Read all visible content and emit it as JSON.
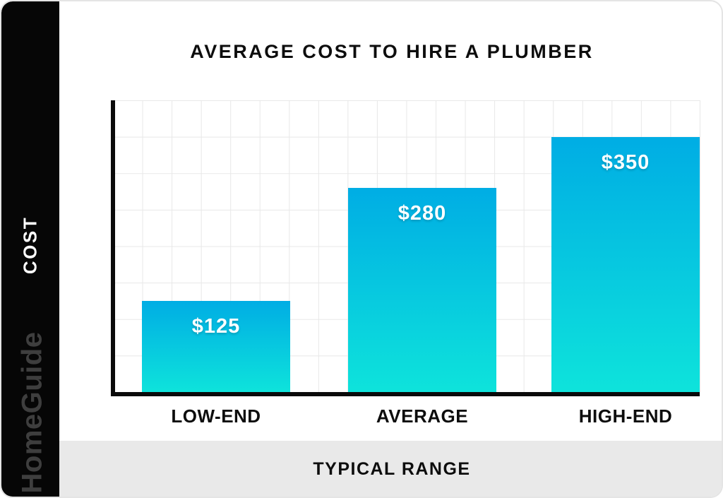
{
  "brand": {
    "logo_text": "HomeGuide"
  },
  "colors": {
    "bar_gradient_top": "#00ADE4",
    "bar_gradient_bottom": "#0EE3DB",
    "sidebar_bg": "#060606",
    "footer_bg": "#E9E9E9",
    "grid_line": "#E8E8E8",
    "axis": "#0A0A0A",
    "title_text": "#0D0D0D",
    "logo_text_color": "#3E3E3E"
  },
  "chart_data": {
    "type": "bar",
    "title": "AVERAGE COST TO HIRE A PLUMBER",
    "categories": [
      "LOW-END",
      "AVERAGE",
      "HIGH-END"
    ],
    "values": [
      125,
      280,
      350
    ],
    "value_labels": [
      "$125",
      "$280",
      "$350"
    ],
    "xlabel": "TYPICAL RANGE",
    "ylabel": "COST",
    "ylim": [
      0,
      400
    ],
    "grid": true,
    "legend_position": "none"
  }
}
